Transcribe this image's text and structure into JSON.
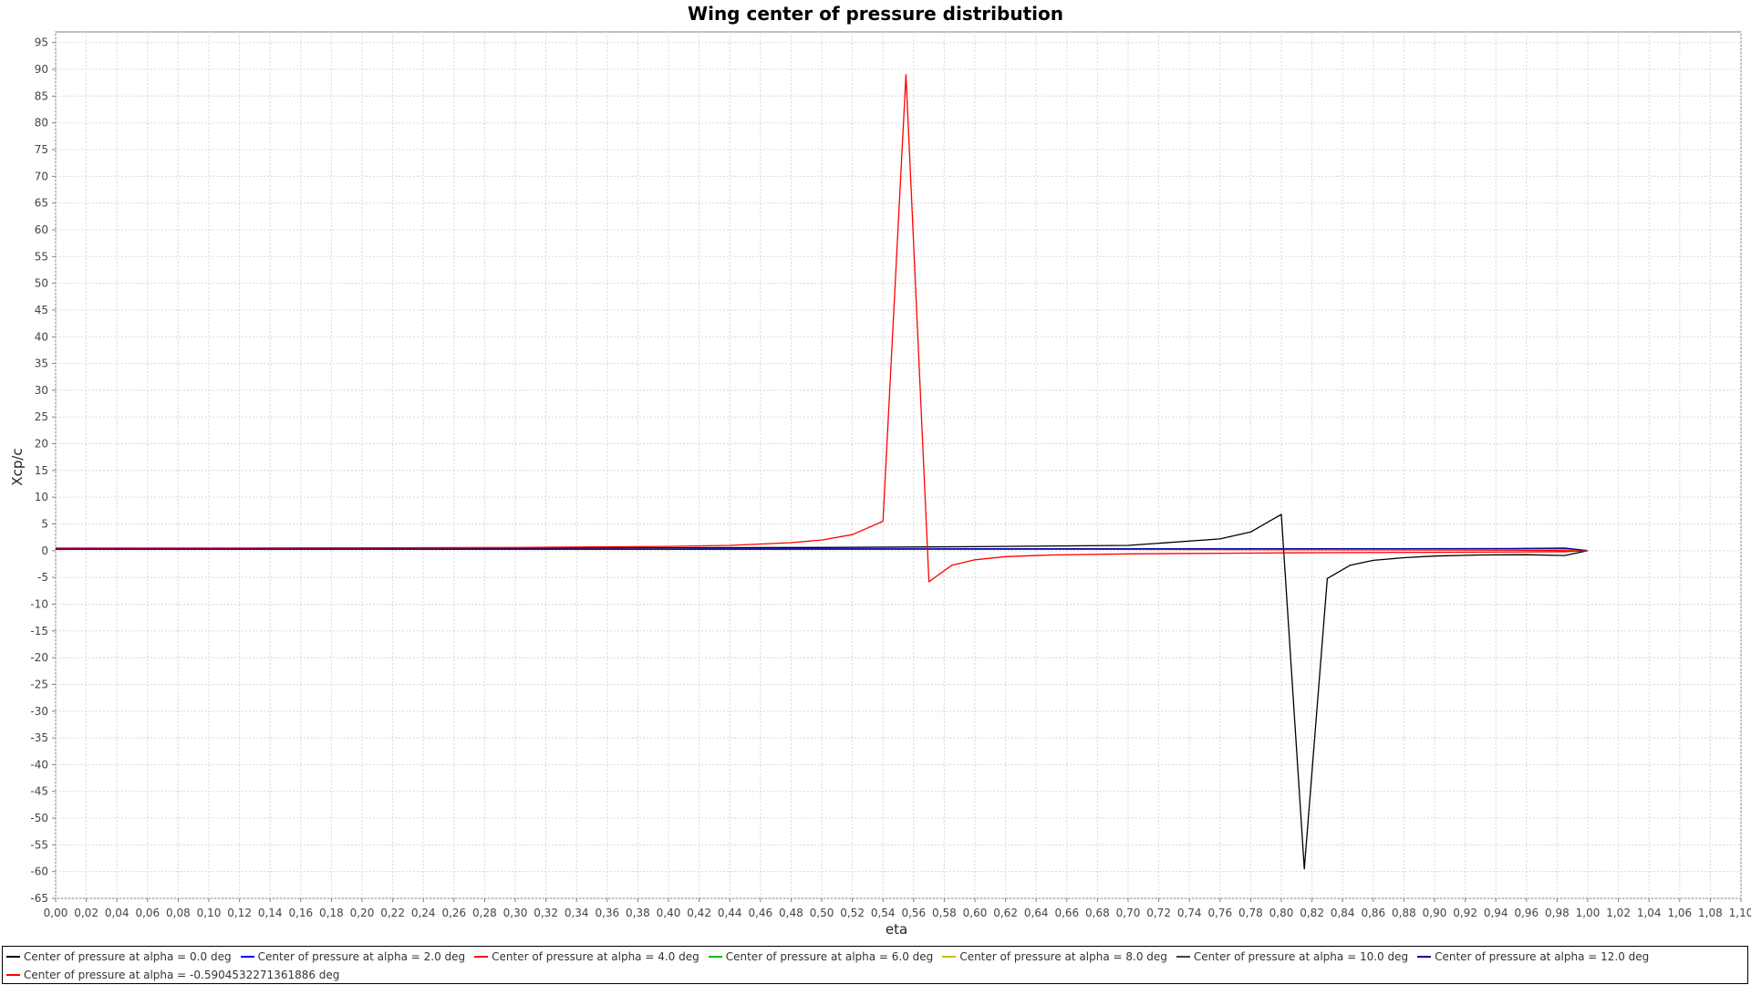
{
  "chart_data": {
    "type": "line",
    "title": "Wing center of pressure distribution",
    "xlabel": "eta",
    "ylabel": "Xcp/c",
    "xlim": [
      0.0,
      1.1
    ],
    "ylim": [
      -65,
      97
    ],
    "x_ticks": [
      "0,00",
      "0,02",
      "0,04",
      "0,06",
      "0,08",
      "0,10",
      "0,12",
      "0,14",
      "0,16",
      "0,18",
      "0,20",
      "0,22",
      "0,24",
      "0,26",
      "0,28",
      "0,30",
      "0,32",
      "0,34",
      "0,36",
      "0,38",
      "0,40",
      "0,42",
      "0,44",
      "0,46",
      "0,48",
      "0,50",
      "0,52",
      "0,54",
      "0,56",
      "0,58",
      "0,60",
      "0,62",
      "0,64",
      "0,66",
      "0,68",
      "0,70",
      "0,72",
      "0,74",
      "0,76",
      "0,78",
      "0,80",
      "0,82",
      "0,84",
      "0,86",
      "0,88",
      "0,90",
      "0,92",
      "0,94",
      "0,96",
      "0,98",
      "1,00",
      "1,02",
      "1,04",
      "1,06",
      "1,08",
      "1,10"
    ],
    "y_ticks": [
      "95",
      "90",
      "85",
      "80",
      "75",
      "70",
      "65",
      "60",
      "55",
      "50",
      "45",
      "40",
      "35",
      "30",
      "25",
      "20",
      "15",
      "10",
      "5",
      "0",
      "-5",
      "-10",
      "-15",
      "-20",
      "-25",
      "-30",
      "-35",
      "-40",
      "-45",
      "-50",
      "-55",
      "-60",
      "-65"
    ],
    "grid": true,
    "legend_position": "bottom",
    "series": [
      {
        "name": "Center of pressure at alpha = 0.0 deg",
        "color": "#000000",
        "x": [
          0.0,
          0.1,
          0.2,
          0.3,
          0.4,
          0.5,
          0.6,
          0.7,
          0.76,
          0.78,
          0.8,
          0.815,
          0.83,
          0.845,
          0.86,
          0.88,
          0.9,
          0.93,
          0.96,
          0.985,
          1.0
        ],
        "y": [
          0.4,
          0.4,
          0.45,
          0.5,
          0.55,
          0.6,
          0.75,
          1.0,
          2.2,
          3.5,
          6.8,
          -59.5,
          -5.2,
          -2.7,
          -1.8,
          -1.3,
          -1.0,
          -0.8,
          -0.75,
          -0.9,
          0.0
        ]
      },
      {
        "name": "Center of pressure at alpha = 2.0 deg",
        "color": "#0000ff",
        "x": [
          0.0,
          0.2,
          0.4,
          0.6,
          0.8,
          0.95,
          0.985,
          1.0
        ],
        "y": [
          0.3,
          0.3,
          0.3,
          0.35,
          0.35,
          0.35,
          0.3,
          0.0
        ]
      },
      {
        "name": "Center of pressure at alpha = 4.0 deg",
        "color": "#ff0000",
        "x": [
          0.0,
          0.2,
          0.4,
          0.6,
          0.8,
          0.95,
          0.985,
          1.0
        ],
        "y": [
          0.35,
          0.35,
          0.3,
          0.3,
          0.2,
          0.1,
          0.0,
          0.0
        ]
      },
      {
        "name": "Center of pressure at alpha = 6.0 deg",
        "color": "#00c000",
        "x": [
          0.0,
          0.2,
          0.4,
          0.6,
          0.8,
          0.95,
          0.985,
          1.0
        ],
        "y": [
          0.3,
          0.3,
          0.3,
          0.3,
          0.3,
          0.3,
          0.3,
          0.0
        ]
      },
      {
        "name": "Center of pressure at alpha = 8.0 deg",
        "color": "#c0c000",
        "x": [
          0.0,
          0.2,
          0.4,
          0.6,
          0.8,
          0.95,
          0.985,
          1.0
        ],
        "y": [
          0.3,
          0.3,
          0.3,
          0.3,
          0.3,
          0.3,
          0.3,
          0.0
        ]
      },
      {
        "name": "Center of pressure at alpha = 10.0 deg",
        "color": "#404040",
        "x": [
          0.0,
          0.2,
          0.4,
          0.6,
          0.8,
          0.95,
          0.985,
          1.0
        ],
        "y": [
          0.3,
          0.3,
          0.3,
          0.3,
          0.35,
          0.4,
          0.45,
          0.0
        ]
      },
      {
        "name": "Center of pressure at alpha = 12.0 deg",
        "color": "#0000a0",
        "x": [
          0.0,
          0.2,
          0.4,
          0.6,
          0.8,
          0.95,
          0.985,
          1.0
        ],
        "y": [
          0.3,
          0.3,
          0.3,
          0.35,
          0.35,
          0.4,
          0.5,
          0.0
        ]
      },
      {
        "name": "Center of pressure at alpha = -0.5904532271361886 deg",
        "color": "#ff0000",
        "x": [
          0.0,
          0.1,
          0.2,
          0.3,
          0.4,
          0.44,
          0.48,
          0.5,
          0.52,
          0.54,
          0.555,
          0.57,
          0.585,
          0.6,
          0.62,
          0.65,
          0.7,
          0.8,
          0.9,
          0.985,
          1.0
        ],
        "y": [
          0.5,
          0.5,
          0.55,
          0.6,
          0.8,
          1.0,
          1.5,
          2.0,
          3.0,
          5.5,
          89.0,
          -5.8,
          -2.7,
          -1.7,
          -1.1,
          -0.8,
          -0.6,
          -0.4,
          -0.3,
          -0.2,
          0.0
        ]
      }
    ]
  }
}
